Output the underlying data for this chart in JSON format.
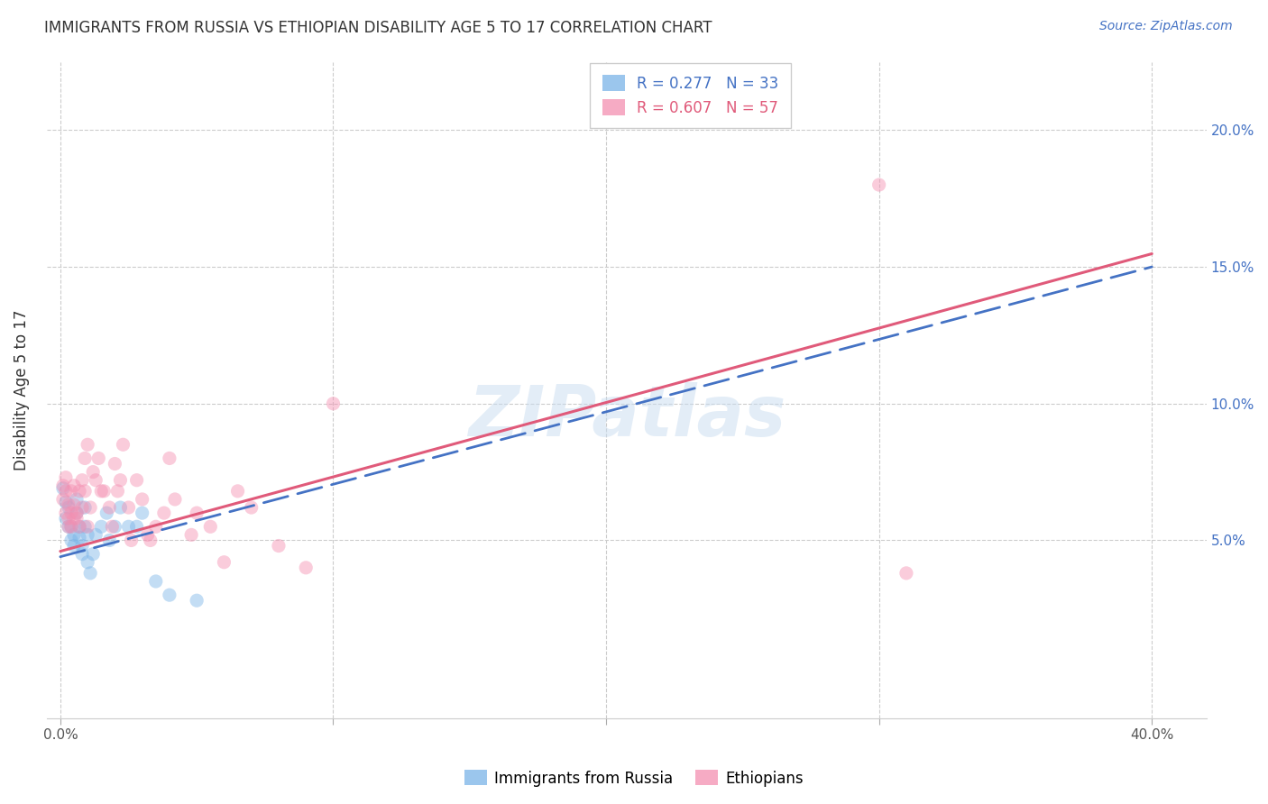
{
  "title": "IMMIGRANTS FROM RUSSIA VS ETHIOPIAN DISABILITY AGE 5 TO 17 CORRELATION CHART",
  "source": "Source: ZipAtlas.com",
  "ylabel": "Disability Age 5 to 17",
  "ytick_values": [
    0.05,
    0.1,
    0.15,
    0.2
  ],
  "xtick_values": [
    0.0,
    0.1,
    0.2,
    0.3,
    0.4
  ],
  "xlim": [
    -0.005,
    0.42
  ],
  "ylim": [
    -0.015,
    0.225
  ],
  "legend_title_russia": "Immigrants from Russia",
  "legend_title_ethiopians": "Ethiopians",
  "watermark": "ZIPatlas",
  "russia_color": "#7ab4e8",
  "ethiopia_color": "#f48fb1",
  "russia_line_color": "#4472c4",
  "ethiopia_line_color": "#e05a7a",
  "russia_scatter": [
    [
      0.001,
      0.069
    ],
    [
      0.002,
      0.064
    ],
    [
      0.002,
      0.058
    ],
    [
      0.003,
      0.055
    ],
    [
      0.003,
      0.062
    ],
    [
      0.004,
      0.05
    ],
    [
      0.004,
      0.055
    ],
    [
      0.005,
      0.048
    ],
    [
      0.005,
      0.052
    ],
    [
      0.006,
      0.06
    ],
    [
      0.006,
      0.065
    ],
    [
      0.007,
      0.051
    ],
    [
      0.007,
      0.055
    ],
    [
      0.008,
      0.048
    ],
    [
      0.008,
      0.045
    ],
    [
      0.009,
      0.055
    ],
    [
      0.009,
      0.062
    ],
    [
      0.01,
      0.052
    ],
    [
      0.01,
      0.042
    ],
    [
      0.011,
      0.038
    ],
    [
      0.012,
      0.045
    ],
    [
      0.013,
      0.052
    ],
    [
      0.015,
      0.055
    ],
    [
      0.017,
      0.06
    ],
    [
      0.018,
      0.05
    ],
    [
      0.02,
      0.055
    ],
    [
      0.022,
      0.062
    ],
    [
      0.025,
      0.055
    ],
    [
      0.028,
      0.055
    ],
    [
      0.03,
      0.06
    ],
    [
      0.035,
      0.035
    ],
    [
      0.04,
      0.03
    ],
    [
      0.05,
      0.028
    ]
  ],
  "ethiopia_scatter": [
    [
      0.001,
      0.07
    ],
    [
      0.001,
      0.065
    ],
    [
      0.002,
      0.068
    ],
    [
      0.002,
      0.06
    ],
    [
      0.002,
      0.073
    ],
    [
      0.003,
      0.055
    ],
    [
      0.003,
      0.063
    ],
    [
      0.003,
      0.058
    ],
    [
      0.004,
      0.068
    ],
    [
      0.004,
      0.055
    ],
    [
      0.004,
      0.06
    ],
    [
      0.005,
      0.07
    ],
    [
      0.005,
      0.058
    ],
    [
      0.005,
      0.063
    ],
    [
      0.006,
      0.058
    ],
    [
      0.006,
      0.06
    ],
    [
      0.007,
      0.068
    ],
    [
      0.007,
      0.055
    ],
    [
      0.008,
      0.072
    ],
    [
      0.008,
      0.062
    ],
    [
      0.009,
      0.068
    ],
    [
      0.009,
      0.08
    ],
    [
      0.01,
      0.085
    ],
    [
      0.01,
      0.055
    ],
    [
      0.011,
      0.062
    ],
    [
      0.012,
      0.075
    ],
    [
      0.013,
      0.072
    ],
    [
      0.014,
      0.08
    ],
    [
      0.015,
      0.068
    ],
    [
      0.016,
      0.068
    ],
    [
      0.018,
      0.062
    ],
    [
      0.019,
      0.055
    ],
    [
      0.02,
      0.078
    ],
    [
      0.021,
      0.068
    ],
    [
      0.022,
      0.072
    ],
    [
      0.023,
      0.085
    ],
    [
      0.025,
      0.062
    ],
    [
      0.026,
      0.05
    ],
    [
      0.028,
      0.072
    ],
    [
      0.03,
      0.065
    ],
    [
      0.032,
      0.052
    ],
    [
      0.033,
      0.05
    ],
    [
      0.035,
      0.055
    ],
    [
      0.038,
      0.06
    ],
    [
      0.04,
      0.08
    ],
    [
      0.042,
      0.065
    ],
    [
      0.048,
      0.052
    ],
    [
      0.05,
      0.06
    ],
    [
      0.055,
      0.055
    ],
    [
      0.06,
      0.042
    ],
    [
      0.065,
      0.068
    ],
    [
      0.07,
      0.062
    ],
    [
      0.08,
      0.048
    ],
    [
      0.09,
      0.04
    ],
    [
      0.1,
      0.1
    ],
    [
      0.3,
      0.18
    ],
    [
      0.31,
      0.038
    ]
  ],
  "russia_regression": {
    "slope": 0.265,
    "intercept": 0.044
  },
  "ethiopia_regression": {
    "slope": 0.272,
    "intercept": 0.046
  },
  "background_color": "#ffffff",
  "grid_color": "#cccccc",
  "marker_size": 120,
  "marker_alpha": 0.45
}
